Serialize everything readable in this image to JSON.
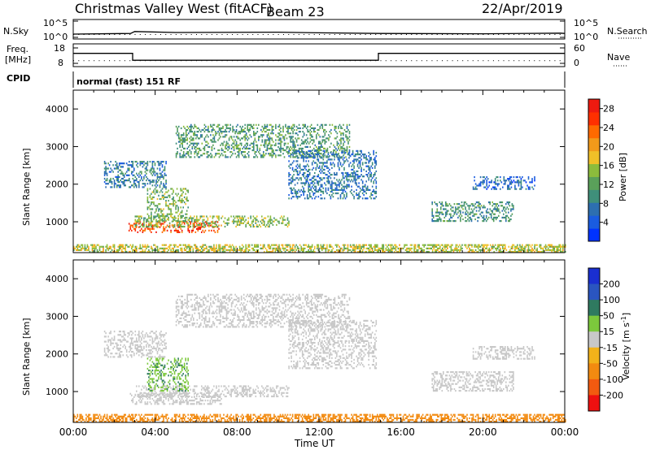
{
  "header": {
    "title": "Christmas Valley West (fitACF)",
    "beam": "Beam 23",
    "date": "22/Apr/2019"
  },
  "side_labels": {
    "nsky": "N.Sky",
    "nsearch": "N.Search",
    "freq_line1": "Freq.",
    "freq_line2": "[MHz]",
    "nave": "Nave",
    "cpid": "CPID",
    "cpid_value": "normal (fast) 151 RF"
  },
  "noise_panel": {
    "left_ticks": [
      "10^5",
      "10^0"
    ],
    "right_ticks": [
      "10^5",
      "10^0"
    ]
  },
  "freq_panel": {
    "left_ticks": [
      "18",
      "8"
    ],
    "right_ticks": [
      "60",
      "0"
    ]
  },
  "x_axis": {
    "label": "Time UT",
    "ticks": [
      "00:00",
      "04:00",
      "08:00",
      "12:00",
      "16:00",
      "20:00",
      "00:00"
    ]
  },
  "chart_data": [
    {
      "type": "line",
      "panel": "noise",
      "series": [
        {
          "name": "N.Sky",
          "x_hours": [
            0,
            2.8,
            3.0,
            5.0,
            10.0,
            12.0,
            15.0,
            20.0,
            23.8,
            24
          ],
          "values": [
            1.0,
            1.2,
            1.8,
            1.5,
            1.6,
            1.4,
            1.2,
            1.1,
            1.3,
            1.2
          ]
        },
        {
          "name": "N.Search",
          "x_hours": [
            0,
            6,
            12,
            18,
            24
          ],
          "values": [
            1.0,
            1.1,
            1.0,
            1.0,
            1.1
          ]
        }
      ],
      "ylim_log10": [
        0,
        5
      ]
    },
    {
      "type": "line",
      "panel": "frequency",
      "series": [
        {
          "name": "Freq.",
          "x_hours": [
            0,
            2.9,
            2.9,
            14.9,
            14.9,
            24
          ],
          "values": [
            14.5,
            14.5,
            10.0,
            10.0,
            14.5,
            14.5
          ]
        },
        {
          "name": "Nave",
          "x_hours": [
            0,
            3,
            6,
            9,
            12,
            15,
            18,
            21,
            24
          ],
          "values": [
            12,
            12,
            12,
            12,
            12,
            12,
            12,
            12,
            12
          ]
        }
      ],
      "ylim_freq": [
        8,
        18
      ],
      "ylim_nave": [
        0,
        60
      ]
    },
    {
      "type": "heatmap",
      "panel": "power",
      "title": "",
      "xlabel": "Time UT",
      "ylabel": "Slant Range [km]",
      "xlim_hours": [
        0,
        24
      ],
      "ylim_km": [
        180,
        4500
      ],
      "yticks": [
        "1000",
        "2000",
        "3000",
        "4000"
      ],
      "colorbar": {
        "label": "Power [dB]",
        "ticks": [
          "4",
          "8",
          "12",
          "16",
          "20",
          "24",
          "28"
        ],
        "range": [
          0,
          30
        ],
        "colors": [
          "#0033ff",
          "#1a5ce0",
          "#2d6fb0",
          "#3f8f7a",
          "#5aa05a",
          "#8cbc3c",
          "#f0c028",
          "#f29a1a",
          "#ff6a00",
          "#ff3000",
          "#ee1a10"
        ]
      },
      "regions": [
        {
          "t0": 2.7,
          "t1": 7.2,
          "r0": 700,
          "r1": 1000,
          "value": 25
        },
        {
          "t0": 3.0,
          "t1": 10.5,
          "r0": 850,
          "r1": 1150,
          "value": 14
        },
        {
          "t0": 3.6,
          "t1": 5.6,
          "r0": 1000,
          "r1": 1900,
          "value": 13
        },
        {
          "t0": 1.5,
          "t1": 4.5,
          "r0": 1900,
          "r1": 2600,
          "value": 8
        },
        {
          "t0": 5.0,
          "t1": 13.5,
          "r0": 2700,
          "r1": 3600,
          "value": 11
        },
        {
          "t0": 10.5,
          "t1": 14.8,
          "r0": 1600,
          "r1": 2900,
          "value": 7
        },
        {
          "t0": 17.5,
          "t1": 21.5,
          "r0": 1000,
          "r1": 1500,
          "value": 10
        },
        {
          "t0": 19.5,
          "t1": 22.5,
          "r0": 1850,
          "r1": 2200,
          "value": 6
        },
        {
          "t0": 0.0,
          "t1": 24.0,
          "r0": 180,
          "r1": 380,
          "value": 16
        }
      ]
    },
    {
      "type": "heatmap",
      "panel": "velocity",
      "title": "",
      "xlabel": "Time UT",
      "ylabel": "Slant Range [km]",
      "xlim_hours": [
        0,
        24
      ],
      "ylim_km": [
        180,
        4500
      ],
      "yticks": [
        "1000",
        "2000",
        "3000",
        "4000"
      ],
      "colorbar": {
        "label": "Velocity [m s^-1]",
        "ticks": [
          "200",
          "100",
          "50",
          "15",
          "-15",
          "-50",
          "-100",
          "-200"
        ],
        "colors": [
          "#1a2fd0",
          "#2a55c0",
          "#2f7a60",
          "#7cc83c",
          "#c8c8c8",
          "#f2b21a",
          "#f28a10",
          "#f25a10",
          "#ee1010"
        ]
      },
      "regions": [
        {
          "t0": 2.7,
          "t1": 7.2,
          "r0": 650,
          "r1": 950,
          "value": -10
        },
        {
          "t0": 3.0,
          "t1": 10.5,
          "r0": 850,
          "r1": 1150,
          "value": 5
        },
        {
          "t0": 3.6,
          "t1": 5.6,
          "r0": 1000,
          "r1": 1900,
          "value": 30
        },
        {
          "t0": 1.5,
          "t1": 4.5,
          "r0": 1900,
          "r1": 2600,
          "value": 0
        },
        {
          "t0": 5.0,
          "t1": 13.5,
          "r0": 2700,
          "r1": 3600,
          "value": 2
        },
        {
          "t0": 10.5,
          "t1": 14.8,
          "r0": 1600,
          "r1": 2900,
          "value": 0
        },
        {
          "t0": 17.5,
          "t1": 21.5,
          "r0": 1000,
          "r1": 1500,
          "value": 0
        },
        {
          "t0": 19.5,
          "t1": 22.5,
          "r0": 1850,
          "r1": 2200,
          "value": -5
        },
        {
          "t0": 0.0,
          "t1": 24.0,
          "r0": 180,
          "r1": 380,
          "value": -40
        }
      ]
    }
  ]
}
